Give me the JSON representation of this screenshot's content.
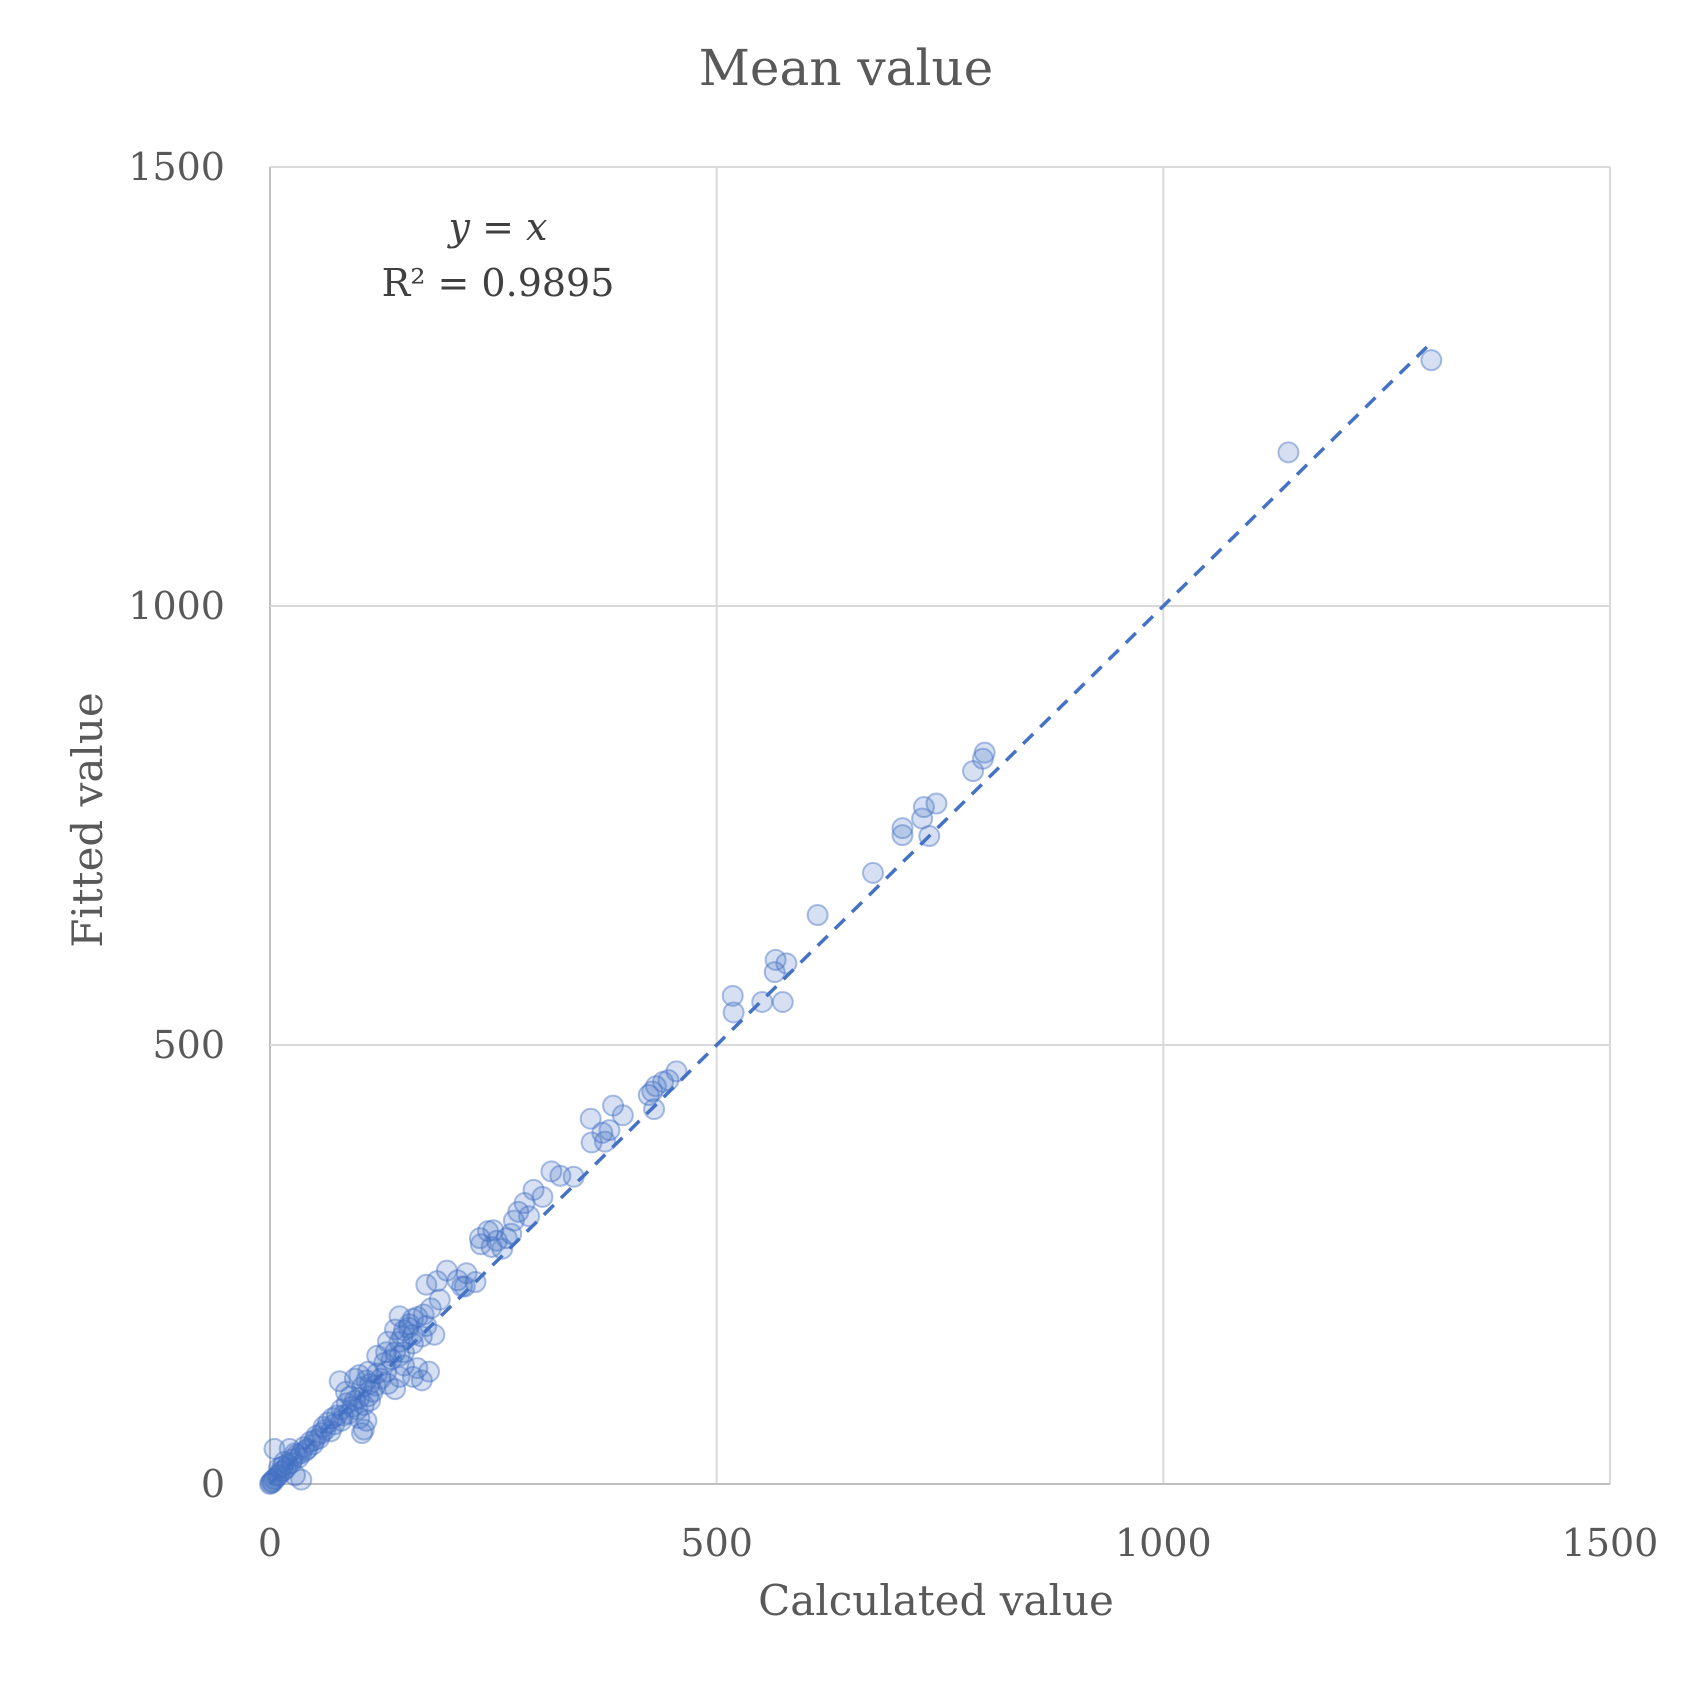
{
  "chart_data": {
    "type": "scatter",
    "title": "Mean value",
    "xlabel": "Calculated value",
    "ylabel": "Fitted value",
    "xlim": [
      0,
      1500
    ],
    "ylim": [
      0,
      1500
    ],
    "xticks": [
      "0",
      "500",
      "1000",
      "1500"
    ],
    "yticks": [
      "0",
      "500",
      "1000",
      "1500"
    ],
    "grid": true,
    "annotation": {
      "equation": "y = x",
      "r2_label": "R² = 0.9895"
    },
    "trendline": {
      "type": "linear",
      "slope": 1,
      "intercept": 0,
      "x_range": [
        0,
        1300
      ],
      "style": "dashed"
    },
    "marker_color": "#4472c4",
    "series": [
      {
        "points": [
          [
            1300,
            1280
          ],
          [
            1140,
            1175
          ],
          [
            800,
            833
          ],
          [
            798,
            826
          ],
          [
            787,
            812
          ],
          [
            746,
            775
          ],
          [
            732,
            771
          ],
          [
            730,
            758
          ],
          [
            738,
            738
          ],
          [
            708,
            747
          ],
          [
            708,
            739
          ],
          [
            675,
            696
          ],
          [
            613,
            648
          ],
          [
            566,
            597
          ],
          [
            578,
            593
          ],
          [
            565,
            583
          ],
          [
            551,
            549
          ],
          [
            574,
            549
          ],
          [
            518,
            556
          ],
          [
            519,
            537
          ],
          [
            455,
            470
          ],
          [
            446,
            460
          ],
          [
            440,
            458
          ],
          [
            432,
            453
          ],
          [
            428,
            447
          ],
          [
            424,
            443
          ],
          [
            430,
            427
          ],
          [
            384,
            431
          ],
          [
            359,
            416
          ],
          [
            395,
            420
          ],
          [
            372,
            400
          ],
          [
            380,
            403
          ],
          [
            360,
            389
          ],
          [
            375,
            390
          ],
          [
            340,
            350
          ],
          [
            325,
            351
          ],
          [
            315,
            356
          ],
          [
            305,
            327
          ],
          [
            295,
            335
          ],
          [
            285,
            320
          ],
          [
            278,
            310
          ],
          [
            273,
            300
          ],
          [
            290,
            305
          ],
          [
            250,
            289
          ],
          [
            244,
            288
          ],
          [
            236,
            273
          ],
          [
            254,
            277
          ],
          [
            265,
            280
          ],
          [
            270,
            285
          ],
          [
            260,
            268
          ],
          [
            248,
            270
          ],
          [
            235,
            280
          ],
          [
            220,
            240
          ],
          [
            210,
            232
          ],
          [
            198,
            243
          ],
          [
            218,
            225
          ],
          [
            230,
            230
          ],
          [
            215,
            225
          ],
          [
            187,
            231
          ],
          [
            175,
            227
          ],
          [
            190,
            210
          ],
          [
            180,
            200
          ],
          [
            172,
            193
          ],
          [
            165,
            190
          ],
          [
            160,
            188
          ],
          [
            156,
            182
          ],
          [
            145,
            191
          ],
          [
            150,
            175
          ],
          [
            140,
            176
          ],
          [
            132,
            162
          ],
          [
            145,
            162
          ],
          [
            160,
            170
          ],
          [
            175,
            180
          ],
          [
            155,
            178
          ],
          [
            148,
            168
          ],
          [
            140,
            150
          ],
          [
            130,
            150
          ],
          [
            120,
            146
          ],
          [
            128,
            138
          ],
          [
            136,
            142
          ],
          [
            145,
            146
          ],
          [
            150,
            150
          ],
          [
            160,
            160
          ],
          [
            170,
            168
          ],
          [
            184,
            170
          ],
          [
            110,
            128
          ],
          [
            120,
            126
          ],
          [
            130,
            128
          ],
          [
            124,
            120
          ],
          [
            132,
            114
          ],
          [
            118,
            112
          ],
          [
            108,
            118
          ],
          [
            115,
            105
          ],
          [
            100,
            124
          ],
          [
            95,
            120
          ],
          [
            103,
            110
          ],
          [
            112,
            114
          ],
          [
            150,
            135
          ],
          [
            165,
            132
          ],
          [
            178,
            128
          ],
          [
            170,
            118
          ],
          [
            160,
            122
          ],
          [
            140,
            108
          ],
          [
            145,
            122
          ],
          [
            78,
            117
          ],
          [
            85,
            105
          ],
          [
            90,
            100
          ],
          [
            95,
            95
          ],
          [
            100,
            98
          ],
          [
            110,
            100
          ],
          [
            105,
            90
          ],
          [
            98,
            85
          ],
          [
            92,
            88
          ],
          [
            88,
            80
          ],
          [
            80,
            85
          ],
          [
            75,
            78
          ],
          [
            70,
            75
          ],
          [
            65,
            70
          ],
          [
            72,
            68
          ],
          [
            80,
            72
          ],
          [
            60,
            65
          ],
          [
            68,
            60
          ],
          [
            58,
            58
          ],
          [
            100,
            75
          ],
          [
            108,
            72
          ],
          [
            105,
            62
          ],
          [
            103,
            58
          ],
          [
            112,
            95
          ],
          [
            86,
            92
          ],
          [
            82,
            78
          ],
          [
            55,
            52
          ],
          [
            50,
            50
          ],
          [
            48,
            45
          ],
          [
            45,
            48
          ],
          [
            42,
            40
          ],
          [
            38,
            42
          ],
          [
            35,
            35
          ],
          [
            32,
            30
          ],
          [
            30,
            33
          ],
          [
            25,
            28
          ],
          [
            20,
            22
          ],
          [
            22,
            40
          ],
          [
            28,
            35
          ],
          [
            18,
            18
          ],
          [
            15,
            15
          ],
          [
            12,
            14
          ],
          [
            10,
            10
          ],
          [
            8,
            9
          ],
          [
            6,
            6
          ],
          [
            4,
            5
          ],
          [
            3,
            2
          ],
          [
            2,
            3
          ],
          [
            1,
            1
          ],
          [
            5,
            40
          ],
          [
            14,
            20
          ],
          [
            24,
            24
          ],
          [
            40,
            38
          ],
          [
            52,
            55
          ],
          [
            62,
            62
          ],
          [
            35,
            5
          ],
          [
            28,
            10
          ],
          [
            16,
            25
          ],
          [
            10,
            18
          ],
          [
            0,
            0
          ]
        ]
      }
    ]
  }
}
